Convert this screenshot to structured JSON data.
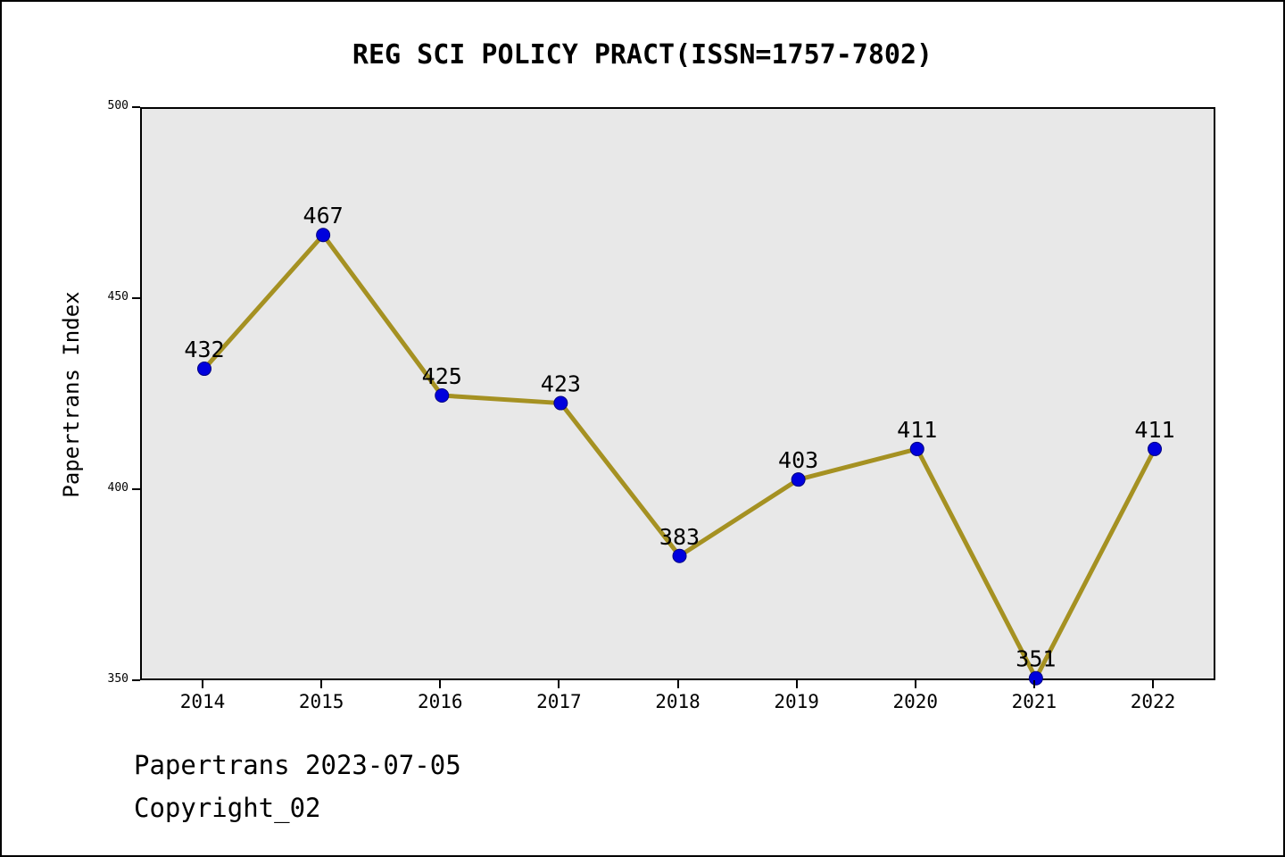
{
  "title": "REG SCI POLICY PRACT(ISSN=1757-7802)",
  "footer": {
    "line1": "Papertrans 2023-07-05",
    "line2": "Copyright_02"
  },
  "chart_data": {
    "type": "line",
    "title": "REG SCI POLICY PRACT(ISSN=1757-7802)",
    "x": [
      "2014",
      "2015",
      "2016",
      "2017",
      "2018",
      "2019",
      "2020",
      "2021",
      "2022"
    ],
    "values": [
      432,
      467,
      425,
      423,
      383,
      403,
      411,
      351,
      411
    ],
    "point_labels": [
      "432",
      "467",
      "425",
      "423",
      "383",
      "403",
      "411",
      "351",
      "411"
    ],
    "xlabel": "",
    "ylabel": "Papertrans Index",
    "ylim": [
      350,
      500
    ],
    "yticks": [
      350,
      400,
      450,
      500
    ],
    "grid": false,
    "legend": "none",
    "colors": {
      "line": "#a59122",
      "marker": "#0000dd",
      "marker_edge": "#000080",
      "plot_background": "#e8e8e8",
      "text": "#000000"
    }
  }
}
